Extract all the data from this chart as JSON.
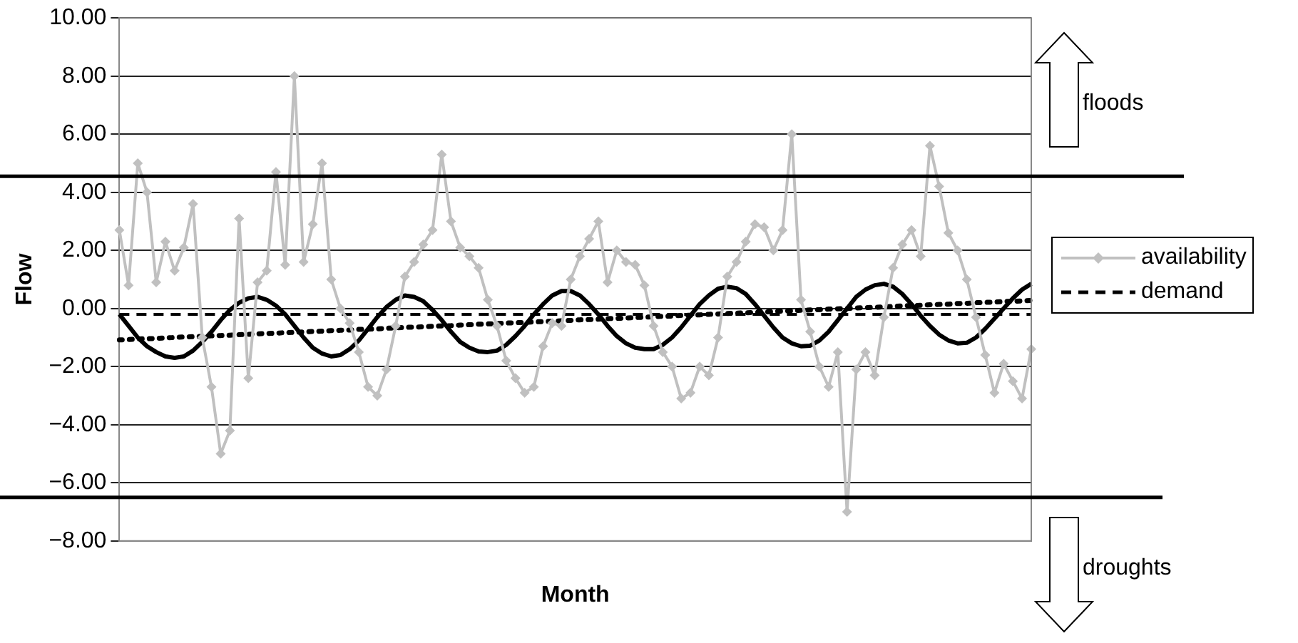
{
  "chart_data": {
    "type": "line",
    "xlabel": "Month",
    "ylabel": "Flow",
    "categories": [
      null,
      null,
      null,
      null,
      null,
      null,
      null,
      null,
      null,
      null,
      null,
      null,
      null,
      null,
      null,
      null,
      null,
      null,
      null,
      null,
      null,
      null,
      null,
      null,
      null,
      null,
      null,
      null,
      null,
      null,
      null,
      null,
      null,
      null,
      null,
      null,
      null,
      null,
      null,
      null,
      null,
      null,
      null,
      null,
      null,
      null,
      null,
      null,
      null,
      null,
      null,
      null,
      null,
      null,
      null,
      null,
      null,
      null,
      null,
      null,
      null,
      null,
      null,
      null,
      null,
      null,
      null,
      null,
      null,
      null,
      null,
      null,
      null,
      null,
      null,
      null,
      null,
      null,
      null,
      null,
      null,
      null,
      null,
      null,
      null,
      null,
      null,
      null,
      null,
      null,
      null,
      null,
      null,
      null,
      null,
      null,
      null,
      null,
      null,
      null
    ],
    "series": [
      {
        "name": "availability",
        "color": "#c0c0c0",
        "marker": "diamond",
        "line_style": "solid",
        "values": [
          2.7,
          0.8,
          5.0,
          4.0,
          0.9,
          2.3,
          1.3,
          2.1,
          3.6,
          -1.0,
          -2.7,
          -5.0,
          -4.2,
          3.1,
          -2.4,
          0.9,
          1.3,
          4.7,
          1.5,
          8.0,
          1.6,
          2.9,
          5.0,
          1.0,
          0.0,
          -0.5,
          -1.5,
          -2.7,
          -3.0,
          -2.1,
          -0.6,
          1.1,
          1.6,
          2.2,
          2.7,
          5.3,
          3.0,
          2.1,
          1.8,
          1.4,
          0.3,
          -0.6,
          -1.8,
          -2.4,
          -2.9,
          -2.7,
          -1.3,
          -0.5,
          -0.6,
          1.0,
          1.8,
          2.4,
          3.0,
          0.9,
          2.0,
          1.6,
          1.5,
          0.8,
          -0.6,
          -1.5,
          -2.0,
          -3.1,
          -2.9,
          -2.0,
          -2.3,
          -1.0,
          1.1,
          1.6,
          2.3,
          2.9,
          2.8,
          2.0,
          2.7,
          6.0,
          0.3,
          -0.8,
          -2.0,
          -2.7,
          -1.5,
          -7.0,
          -2.1,
          -1.5,
          -2.3,
          -0.3,
          1.4,
          2.2,
          2.7,
          1.8,
          5.6,
          4.2,
          2.6,
          2.0,
          1.0,
          -0.3,
          -1.6,
          -2.9,
          -1.9,
          -2.5,
          -3.1,
          -1.4
        ]
      },
      {
        "name": "demand",
        "color": "#000000",
        "marker": "none",
        "line_style": "dashed",
        "values": [
          -0.2,
          -0.2,
          -0.2,
          -0.2,
          -0.2,
          -0.2,
          -0.2,
          -0.2,
          -0.2,
          -0.2,
          -0.2,
          -0.2,
          -0.2,
          -0.2,
          -0.2,
          -0.2,
          -0.2,
          -0.2,
          -0.2,
          -0.2,
          -0.2,
          -0.2,
          -0.2,
          -0.2,
          -0.2,
          -0.2,
          -0.2,
          -0.2,
          -0.2,
          -0.2,
          -0.2,
          -0.2,
          -0.2,
          -0.2,
          -0.2,
          -0.2,
          -0.2,
          -0.2,
          -0.2,
          -0.2,
          -0.2,
          -0.2,
          -0.2,
          -0.2,
          -0.2,
          -0.2,
          -0.2,
          -0.2,
          -0.2,
          -0.2,
          -0.2,
          -0.2,
          -0.2,
          -0.2,
          -0.2,
          -0.2,
          -0.2,
          -0.2,
          -0.2,
          -0.2,
          -0.2,
          -0.2,
          -0.2,
          -0.2,
          -0.2,
          -0.2,
          -0.2,
          -0.2,
          -0.2,
          -0.2,
          -0.2,
          -0.2,
          -0.2,
          -0.2,
          -0.2,
          -0.2,
          -0.2,
          -0.2,
          -0.2,
          -0.2,
          -0.2,
          -0.2,
          -0.2,
          -0.2,
          -0.2,
          -0.2,
          -0.2,
          -0.2,
          -0.2,
          -0.2,
          -0.2,
          -0.2,
          -0.2,
          -0.2,
          -0.2,
          -0.2,
          -0.2,
          -0.2,
          -0.2,
          -0.2
        ]
      },
      {
        "color": "#000000",
        "marker": "none",
        "line_style": "solid",
        "values": [
          -0.2,
          -0.6,
          -1.0,
          -1.3,
          -1.5,
          -1.65,
          -1.7,
          -1.65,
          -1.45,
          -1.15,
          -0.8,
          -0.4,
          -0.05,
          0.2,
          0.35,
          0.4,
          0.3,
          0.1,
          -0.2,
          -0.6,
          -1.0,
          -1.35,
          -1.55,
          -1.65,
          -1.6,
          -1.4,
          -1.1,
          -0.7,
          -0.3,
          0.05,
          0.3,
          0.45,
          0.4,
          0.25,
          -0.05,
          -0.4,
          -0.8,
          -1.15,
          -1.35,
          -1.48,
          -1.5,
          -1.45,
          -1.25,
          -0.95,
          -0.6,
          -0.2,
          0.15,
          0.45,
          0.6,
          0.6,
          0.45,
          0.15,
          -0.2,
          -0.6,
          -0.95,
          -1.2,
          -1.35,
          -1.4,
          -1.4,
          -1.25,
          -1.0,
          -0.65,
          -0.25,
          0.15,
          0.45,
          0.68,
          0.75,
          0.7,
          0.5,
          0.15,
          -0.25,
          -0.65,
          -1.0,
          -1.2,
          -1.3,
          -1.28,
          -1.1,
          -0.8,
          -0.4,
          0.0,
          0.4,
          0.65,
          0.8,
          0.85,
          0.75,
          0.5,
          0.15,
          -0.25,
          -0.6,
          -0.9,
          -1.1,
          -1.2,
          -1.18,
          -1.0,
          -0.7,
          -0.35,
          0.0,
          0.35,
          0.65,
          0.85
        ]
      },
      {
        "color": "#000000",
        "marker": "none",
        "line_style": "dotted",
        "values": [
          -1.08,
          -1.07,
          -1.05,
          -1.04,
          -1.03,
          -1.01,
          -1.0,
          -0.98,
          -0.97,
          -0.96,
          -0.94,
          -0.93,
          -0.92,
          -0.9,
          -0.89,
          -0.87,
          -0.86,
          -0.85,
          -0.83,
          -0.82,
          -0.81,
          -0.79,
          -0.78,
          -0.76,
          -0.75,
          -0.74,
          -0.72,
          -0.71,
          -0.7,
          -0.68,
          -0.67,
          -0.65,
          -0.64,
          -0.63,
          -0.61,
          -0.6,
          -0.59,
          -0.57,
          -0.56,
          -0.54,
          -0.53,
          -0.52,
          -0.5,
          -0.49,
          -0.48,
          -0.46,
          -0.45,
          -0.44,
          -0.42,
          -0.41,
          -0.39,
          -0.38,
          -0.37,
          -0.35,
          -0.34,
          -0.33,
          -0.31,
          -0.3,
          -0.28,
          -0.27,
          -0.26,
          -0.24,
          -0.23,
          -0.22,
          -0.2,
          -0.19,
          -0.17,
          -0.16,
          -0.15,
          -0.13,
          -0.12,
          -0.11,
          -0.09,
          -0.08,
          -0.06,
          -0.05,
          -0.04,
          -0.02,
          -0.01,
          0.0,
          0.02,
          0.03,
          0.04,
          0.06,
          0.07,
          0.09,
          0.1,
          0.11,
          0.13,
          0.14,
          0.15,
          0.17,
          0.18,
          0.2,
          0.21,
          0.22,
          0.24,
          0.25,
          0.26,
          0.28
        ]
      }
    ],
    "ylim": [
      -8,
      10
    ],
    "yticks": [
      {
        "value": 10,
        "label": "10.00"
      },
      {
        "value": 8,
        "label": "8.00"
      },
      {
        "value": 6,
        "label": "6.00"
      },
      {
        "value": 4,
        "label": "4.00"
      },
      {
        "value": 2,
        "label": "2.00"
      },
      {
        "value": 0,
        "label": "0.00"
      },
      {
        "value": -2,
        "label": "−2.00"
      },
      {
        "value": -4,
        "label": "−4.00"
      },
      {
        "value": -6,
        "label": "−6.00"
      },
      {
        "value": -8,
        "label": "−8.00"
      }
    ],
    "grid": "y",
    "legend": "right",
    "ref_lines": [
      {
        "axis": "y",
        "value": 4.55,
        "color": "#000000"
      },
      {
        "axis": "y",
        "value": -6.5,
        "color": "#000000"
      }
    ],
    "annotations": [
      "floods",
      "droughts"
    ]
  }
}
